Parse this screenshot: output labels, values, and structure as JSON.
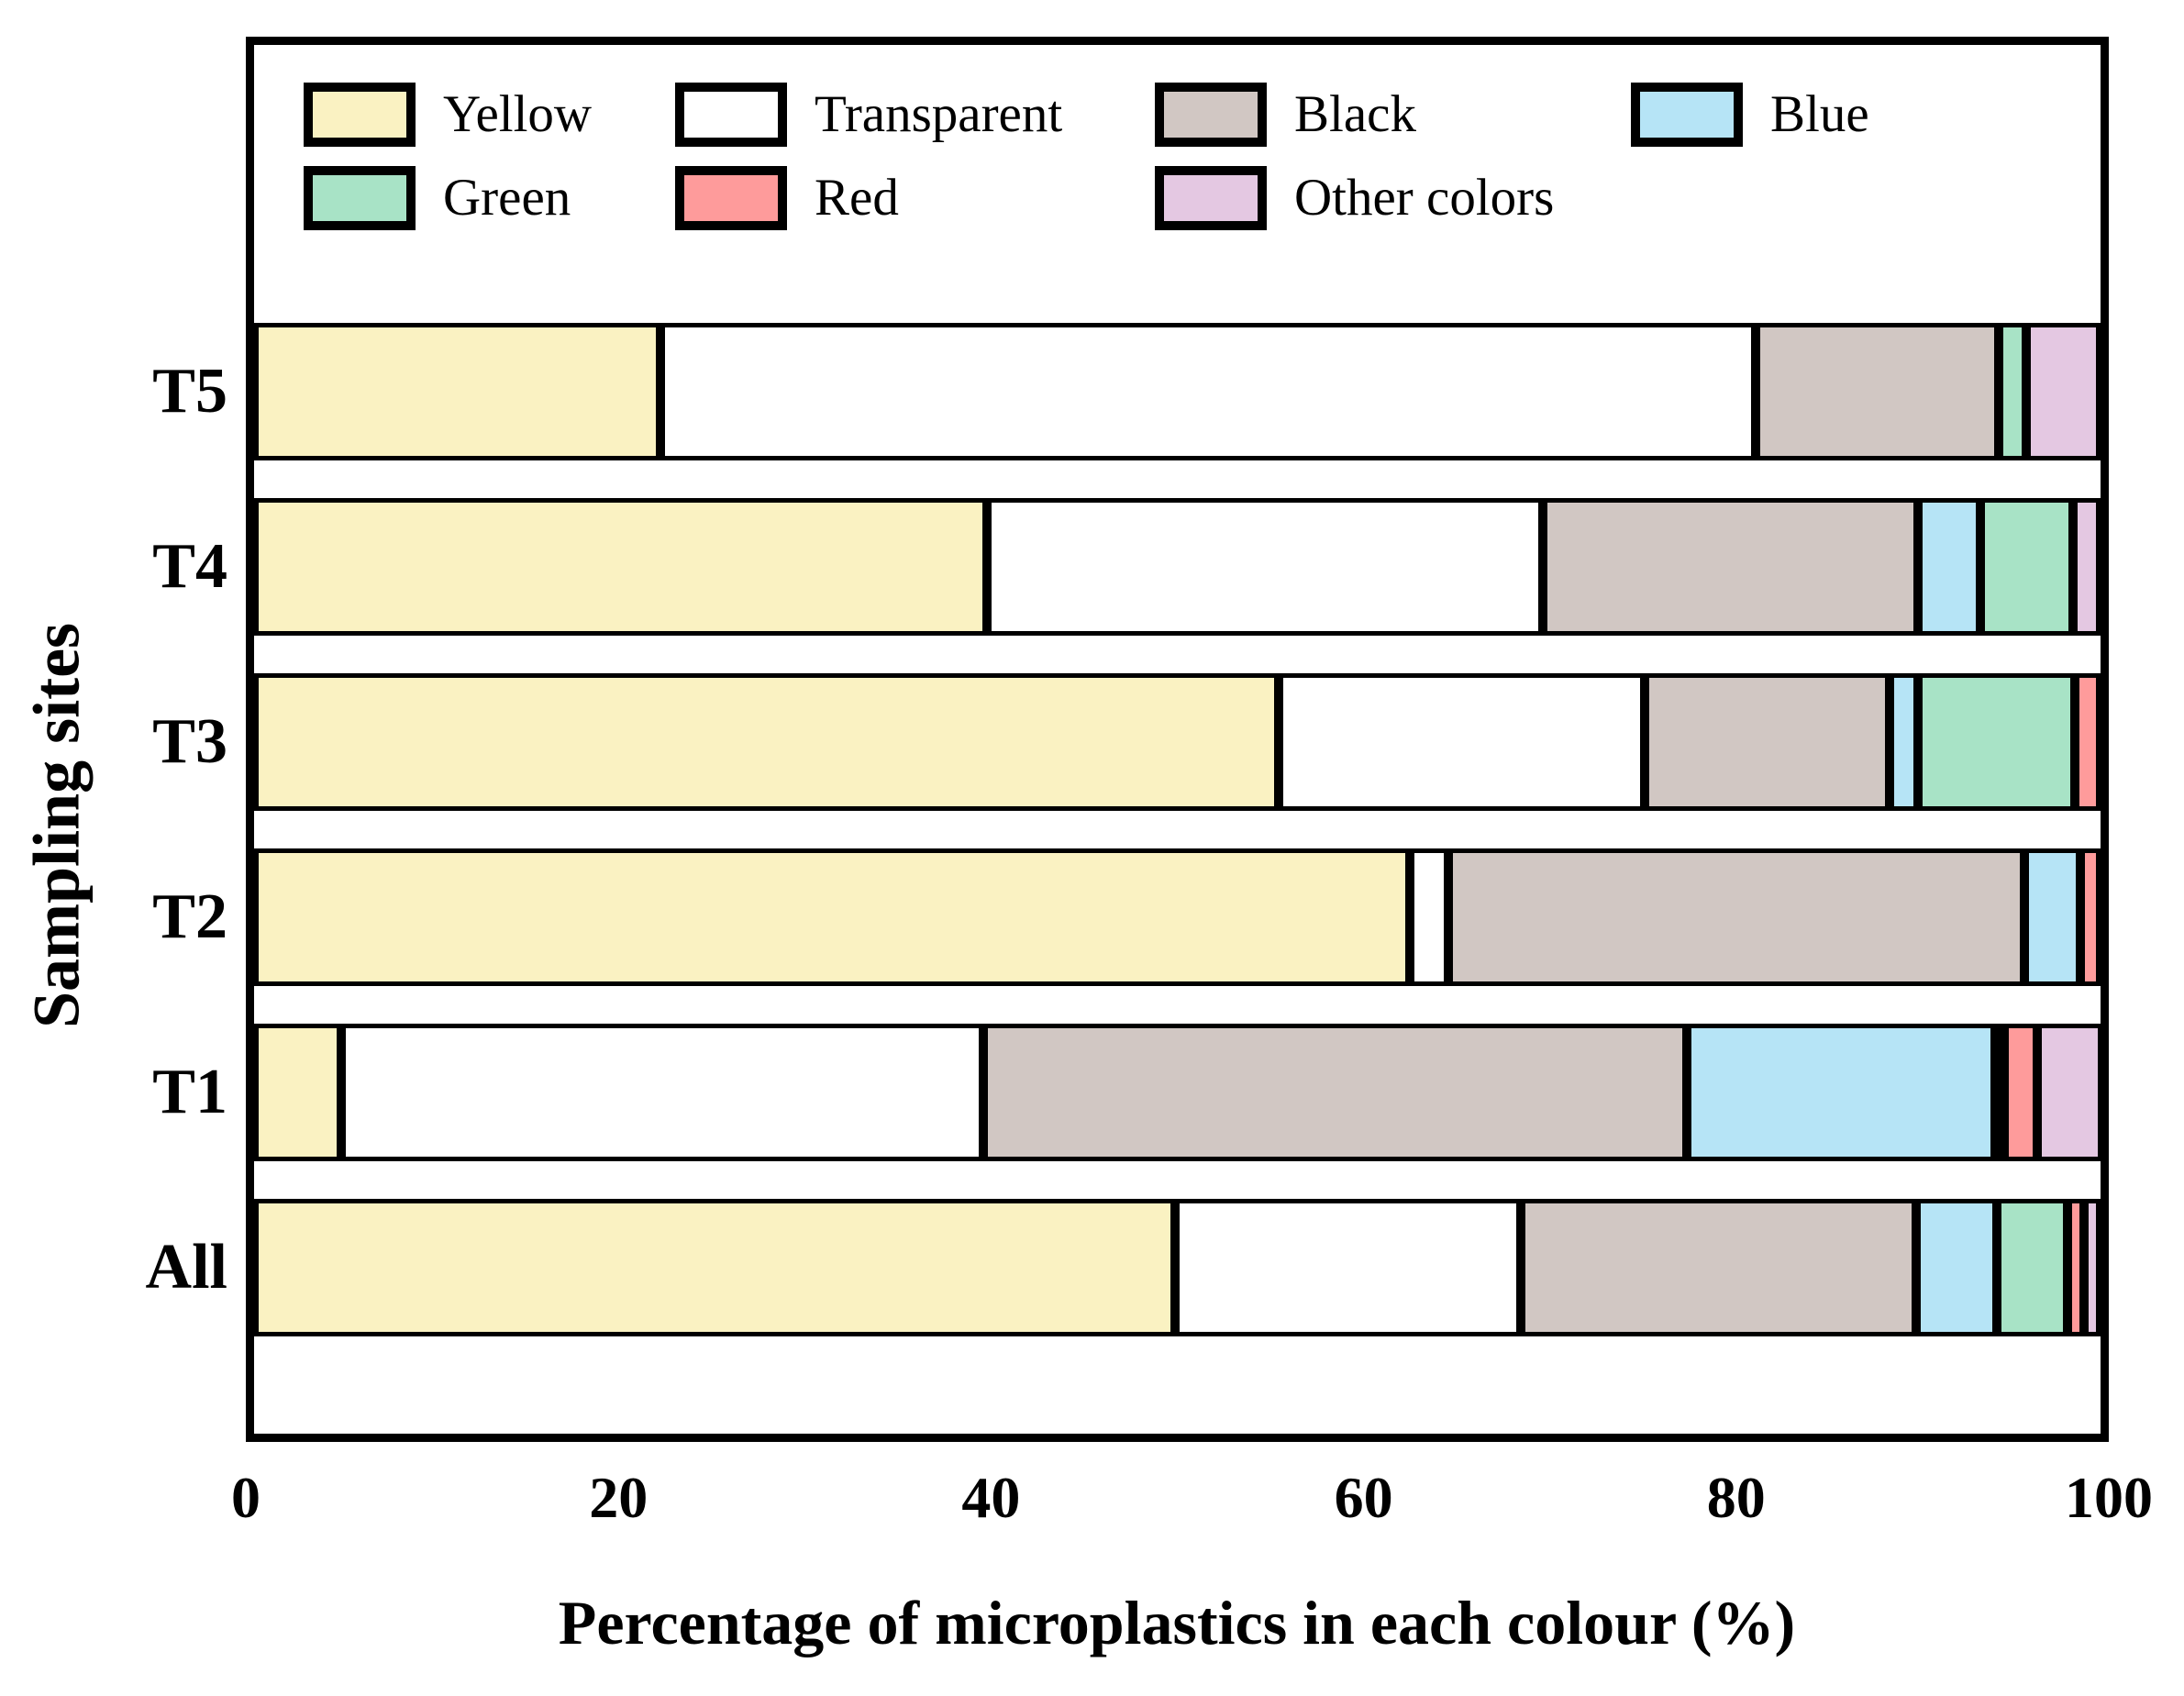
{
  "chart_data": {
    "type": "bar",
    "orientation": "horizontal",
    "stacked": true,
    "xlabel": "Percentage of microplastics in each colour (%)",
    "ylabel": "Sampling sites",
    "xlim": [
      0,
      100
    ],
    "xticks": [
      "0",
      "20",
      "40",
      "60",
      "80",
      "100"
    ],
    "grid": false,
    "legend_position": "inside-top",
    "legend_rows": [
      [
        "Yellow",
        "Transparent",
        "Black",
        "Blue"
      ],
      [
        "Green",
        "Red",
        "Other colors"
      ]
    ],
    "categories": [
      "T5",
      "T4",
      "T3",
      "T2",
      "T1",
      "All"
    ],
    "series": [
      {
        "name": "Yellow",
        "color": "#FAF2C2",
        "values": [
          22.0,
          39.7,
          55.5,
          62.6,
          4.7,
          49.9
        ]
      },
      {
        "name": "Transparent",
        "color": "#FFFFFF",
        "values": [
          59.3,
          30.1,
          19.8,
          2.1,
          34.8,
          18.7
        ]
      },
      {
        "name": "Black",
        "color": "#D1C7C3",
        "values": [
          13.2,
          20.3,
          13.3,
          31.2,
          38.1,
          21.4
        ]
      },
      {
        "name": "Blue",
        "color": "#B6E4F6",
        "values": [
          0,
          3.4,
          1.5,
          3.0,
          16.7,
          4.4
        ]
      },
      {
        "name": "Green",
        "color": "#A8E3C6",
        "values": [
          1.5,
          5.0,
          8.5,
          0,
          0.4,
          3.8
        ]
      },
      {
        "name": "Red",
        "color": "#FE9B9B",
        "values": [
          0,
          0,
          1.4,
          1.1,
          1.8,
          0.9
        ]
      },
      {
        "name": "Other colors",
        "color": "#E4C8E2",
        "values": [
          4.0,
          1.5,
          0,
          0,
          3.5,
          0.9
        ]
      }
    ],
    "segment_border_color": "#000000"
  }
}
